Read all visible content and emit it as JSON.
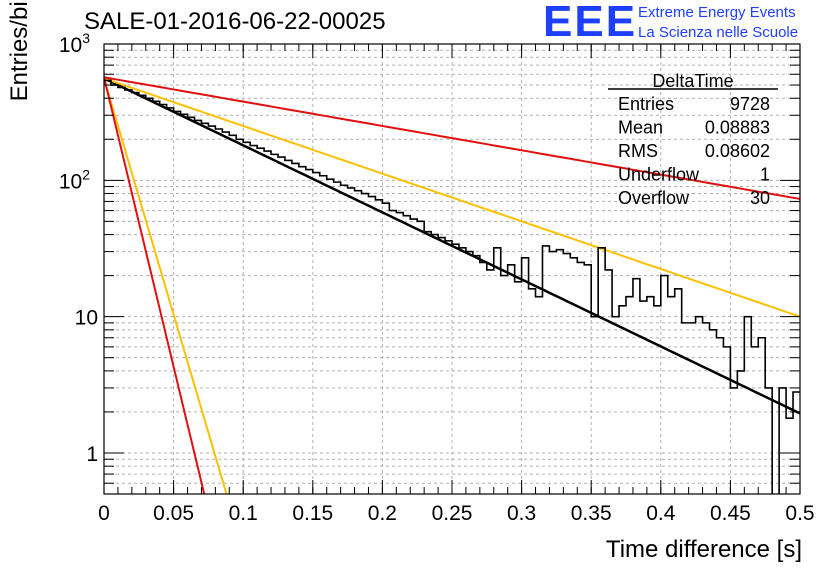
{
  "header": {
    "title": "SALE-01-2016-06-22-00025",
    "logo_text": "EEE",
    "logo_line1": "Extreme Energy Events",
    "logo_line2": "La Scienza nelle Scuole",
    "brand_color": "#1f3fff"
  },
  "chart_data": {
    "type": "step-histogram",
    "title": "SALE-01-2016-06-22-00025",
    "xlabel": "Time difference [s]",
    "ylabel": "Entries/bin",
    "xlim": [
      0,
      0.5
    ],
    "ylim": [
      0.5,
      1000
    ],
    "yscale": "log",
    "grid": true,
    "x_ticks": [
      "0",
      "0.05",
      "0.1",
      "0.15",
      "0.2",
      "0.25",
      "0.3",
      "0.35",
      "0.4",
      "0.45",
      "0.5"
    ],
    "y_ticks": [
      "1",
      "10",
      "10^2",
      "10^3"
    ],
    "bin_width": 0.005,
    "histogram": {
      "name": "DeltaTime",
      "color": "#000000",
      "values": [
        540,
        500,
        480,
        460,
        440,
        420,
        400,
        380,
        360,
        340,
        320,
        305,
        290,
        275,
        262,
        250,
        238,
        226,
        214,
        200,
        190,
        180,
        172,
        164,
        155,
        148,
        140,
        133,
        126,
        120,
        114,
        108,
        102,
        97,
        92,
        88,
        84,
        80,
        76,
        72,
        68,
        60,
        58,
        55,
        52,
        50,
        42,
        40,
        38,
        36,
        34,
        32,
        30,
        28,
        25,
        22,
        32,
        20,
        24,
        18,
        27,
        16,
        14,
        33,
        30,
        31,
        29,
        27,
        25,
        24,
        10,
        32,
        22,
        10,
        12,
        14,
        19,
        13,
        14,
        12,
        20,
        14,
        16,
        9,
        9,
        10,
        9,
        8,
        7,
        6,
        3,
        4,
        10,
        6,
        7,
        3,
        0.3,
        3,
        1.8,
        2.8
      ]
    },
    "fits": [
      {
        "color": "#000000",
        "x": [
          0,
          0.5
        ],
        "y": [
          560,
          1.95
        ]
      },
      {
        "color": "#ffc000",
        "x": [
          0,
          0.5
        ],
        "y": [
          560,
          10
        ]
      },
      {
        "color": "#e01010",
        "x": [
          0,
          0.5
        ],
        "y": [
          570,
          73
        ]
      },
      {
        "color": "#ffc000",
        "x": [
          0,
          0.088
        ],
        "y": [
          560,
          0.5
        ]
      },
      {
        "color": "#e01010",
        "x": [
          0,
          0.072
        ],
        "y": [
          570,
          0.5
        ]
      }
    ],
    "stats_box": {
      "title": "DeltaTime",
      "rows": [
        {
          "label": "Entries",
          "value": "9728"
        },
        {
          "label": "Mean",
          "value": "0.08883"
        },
        {
          "label": "RMS",
          "value": "0.08602"
        },
        {
          "label": "Underflow",
          "value": "1"
        },
        {
          "label": "Overflow",
          "value": "30"
        }
      ]
    }
  }
}
